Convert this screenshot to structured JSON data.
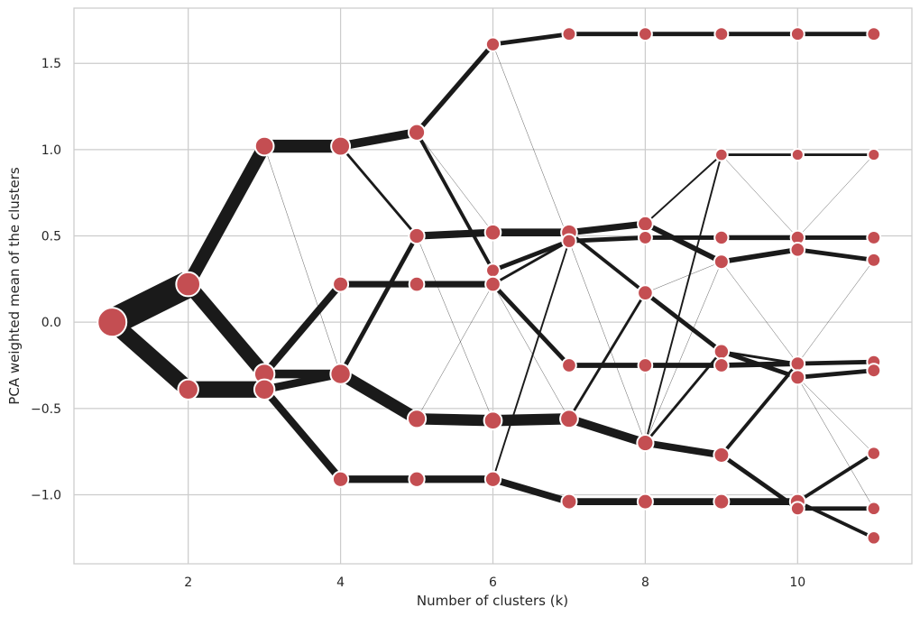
{
  "chart_data": {
    "type": "line",
    "xlabel": "Number of clusters (k)",
    "ylabel": "PCA weighted mean of the clusters",
    "xlim": [
      0.5,
      11.5
    ],
    "ylim": [
      -1.4,
      1.82
    ],
    "xticks": [
      2,
      4,
      6,
      8,
      10
    ],
    "yticks": [
      -1.0,
      -0.5,
      0.0,
      0.5,
      1.0,
      1.5
    ],
    "ytick_labels": [
      "−1.0",
      "−0.5",
      "0.0",
      "0.5",
      "1.0",
      "1.5"
    ],
    "grid": true,
    "colors": {
      "edge": "#1a1a1a",
      "node": "#c44e52",
      "node_stroke": "#ffffff",
      "grid": "#cccccc",
      "frame": "#cccccc"
    },
    "nodes": [
      {
        "k": 1,
        "y": 0.0,
        "size": 1.0
      },
      {
        "k": 2,
        "y": 0.22,
        "size": 0.62
      },
      {
        "k": 2,
        "y": -0.39,
        "size": 0.38
      },
      {
        "k": 3,
        "y": 1.02,
        "size": 0.3
      },
      {
        "k": 3,
        "y": -0.3,
        "size": 0.38
      },
      {
        "k": 3,
        "y": -0.39,
        "size": 0.38
      },
      {
        "k": 4,
        "y": 1.02,
        "size": 0.31
      },
      {
        "k": 4,
        "y": 0.22,
        "size": 0.16
      },
      {
        "k": 4,
        "y": -0.3,
        "size": 0.38
      },
      {
        "k": 4,
        "y": -0.91,
        "size": 0.17
      },
      {
        "k": 5,
        "y": 1.1,
        "size": 0.2
      },
      {
        "k": 5,
        "y": 0.5,
        "size": 0.17
      },
      {
        "k": 5,
        "y": 0.22,
        "size": 0.15
      },
      {
        "k": 5,
        "y": -0.56,
        "size": 0.28
      },
      {
        "k": 5,
        "y": -0.91,
        "size": 0.17
      },
      {
        "k": 6,
        "y": 1.61,
        "size": 0.11
      },
      {
        "k": 6,
        "y": 0.52,
        "size": 0.18
      },
      {
        "k": 6,
        "y": 0.3,
        "size": 0.1
      },
      {
        "k": 6,
        "y": 0.22,
        "size": 0.15
      },
      {
        "k": 6,
        "y": -0.57,
        "size": 0.26
      },
      {
        "k": 6,
        "y": -0.91,
        "size": 0.17
      },
      {
        "k": 7,
        "y": 1.67,
        "size": 0.1
      },
      {
        "k": 7,
        "y": 0.52,
        "size": 0.18
      },
      {
        "k": 7,
        "y": 0.47,
        "size": 0.11
      },
      {
        "k": 7,
        "y": -0.25,
        "size": 0.12
      },
      {
        "k": 7,
        "y": -0.56,
        "size": 0.26
      },
      {
        "k": 7,
        "y": -1.04,
        "size": 0.16
      },
      {
        "k": 8,
        "y": 1.67,
        "size": 0.1
      },
      {
        "k": 8,
        "y": 0.57,
        "size": 0.15
      },
      {
        "k": 8,
        "y": 0.49,
        "size": 0.1
      },
      {
        "k": 8,
        "y": 0.17,
        "size": 0.15
      },
      {
        "k": 8,
        "y": -0.25,
        "size": 0.12
      },
      {
        "k": 8,
        "y": -0.7,
        "size": 0.2
      },
      {
        "k": 8,
        "y": -1.04,
        "size": 0.16
      },
      {
        "k": 9,
        "y": 1.67,
        "size": 0.1
      },
      {
        "k": 9,
        "y": 0.97,
        "size": 0.07
      },
      {
        "k": 9,
        "y": 0.49,
        "size": 0.11
      },
      {
        "k": 9,
        "y": 0.35,
        "size": 0.13
      },
      {
        "k": 9,
        "y": -0.17,
        "size": 0.14
      },
      {
        "k": 9,
        "y": -0.25,
        "size": 0.12
      },
      {
        "k": 9,
        "y": -0.77,
        "size": 0.16
      },
      {
        "k": 9,
        "y": -1.04,
        "size": 0.16
      },
      {
        "k": 10,
        "y": 1.67,
        "size": 0.1
      },
      {
        "k": 10,
        "y": 0.97,
        "size": 0.06
      },
      {
        "k": 10,
        "y": 0.49,
        "size": 0.11
      },
      {
        "k": 10,
        "y": 0.42,
        "size": 0.12
      },
      {
        "k": 10,
        "y": -0.24,
        "size": 0.12
      },
      {
        "k": 10,
        "y": -0.32,
        "size": 0.13
      },
      {
        "k": 10,
        "y": -1.04,
        "size": 0.16
      },
      {
        "k": 10,
        "y": -1.08,
        "size": 0.1
      },
      {
        "k": 11,
        "y": 1.67,
        "size": 0.1
      },
      {
        "k": 11,
        "y": 0.97,
        "size": 0.06
      },
      {
        "k": 11,
        "y": 0.49,
        "size": 0.1
      },
      {
        "k": 11,
        "y": 0.36,
        "size": 0.1
      },
      {
        "k": 11,
        "y": -0.23,
        "size": 0.1
      },
      {
        "k": 11,
        "y": -0.28,
        "size": 0.1
      },
      {
        "k": 11,
        "y": -0.76,
        "size": 0.09
      },
      {
        "k": 11,
        "y": -1.08,
        "size": 0.09
      },
      {
        "k": 11,
        "y": -1.25,
        "size": 0.09
      }
    ],
    "edges": [
      {
        "from": [
          1,
          0.0
        ],
        "to": [
          2,
          0.22
        ],
        "w": 0.62
      },
      {
        "from": [
          1,
          0.0
        ],
        "to": [
          2,
          -0.39
        ],
        "w": 0.38
      },
      {
        "from": [
          2,
          0.22
        ],
        "to": [
          3,
          1.02
        ],
        "w": 0.3
      },
      {
        "from": [
          2,
          0.22
        ],
        "to": [
          3,
          -0.3
        ],
        "w": 0.32
      },
      {
        "from": [
          2,
          -0.39
        ],
        "to": [
          3,
          -0.39
        ],
        "w": 0.38
      },
      {
        "from": [
          3,
          1.02
        ],
        "to": [
          4,
          1.02
        ],
        "w": 0.3
      },
      {
        "from": [
          3,
          1.02
        ],
        "to": [
          4,
          -0.3
        ],
        "w": 0.002
      },
      {
        "from": [
          3,
          -0.3
        ],
        "to": [
          4,
          0.22
        ],
        "w": 0.16
      },
      {
        "from": [
          3,
          -0.3
        ],
        "to": [
          4,
          -0.3
        ],
        "w": 0.2
      },
      {
        "from": [
          3,
          -0.39
        ],
        "to": [
          4,
          -0.3
        ],
        "w": 0.18
      },
      {
        "from": [
          3,
          -0.39
        ],
        "to": [
          4,
          -0.91
        ],
        "w": 0.17
      },
      {
        "from": [
          4,
          1.02
        ],
        "to": [
          5,
          1.1
        ],
        "w": 0.2
      },
      {
        "from": [
          4,
          1.02
        ],
        "to": [
          5,
          0.5
        ],
        "w": 0.06
      },
      {
        "from": [
          4,
          1.02
        ],
        "to": [
          5,
          1.1
        ],
        "w": 0.002
      },
      {
        "from": [
          4,
          0.22
        ],
        "to": [
          5,
          0.22
        ],
        "w": 0.15
      },
      {
        "from": [
          4,
          -0.3
        ],
        "to": [
          5,
          0.5
        ],
        "w": 0.1
      },
      {
        "from": [
          4,
          -0.3
        ],
        "to": [
          5,
          -0.56
        ],
        "w": 0.28
      },
      {
        "from": [
          4,
          -0.91
        ],
        "to": [
          5,
          -0.91
        ],
        "w": 0.17
      },
      {
        "from": [
          5,
          1.1
        ],
        "to": [
          6,
          1.61
        ],
        "w": 0.11
      },
      {
        "from": [
          5,
          1.1
        ],
        "to": [
          6,
          0.3
        ],
        "w": 0.08
      },
      {
        "from": [
          5,
          1.1
        ],
        "to": [
          6,
          0.52
        ],
        "w": 0.004
      },
      {
        "from": [
          5,
          0.5
        ],
        "to": [
          6,
          0.52
        ],
        "w": 0.17
      },
      {
        "from": [
          5,
          0.5
        ],
        "to": [
          6,
          -0.57
        ],
        "w": 0.002
      },
      {
        "from": [
          5,
          0.22
        ],
        "to": [
          6,
          0.22
        ],
        "w": 0.15
      },
      {
        "from": [
          5,
          -0.56
        ],
        "to": [
          6,
          -0.57
        ],
        "w": 0.26
      },
      {
        "from": [
          5,
          -0.56
        ],
        "to": [
          6,
          0.22
        ],
        "w": 0.004
      },
      {
        "from": [
          5,
          -0.91
        ],
        "to": [
          6,
          -0.91
        ],
        "w": 0.17
      },
      {
        "from": [
          6,
          1.61
        ],
        "to": [
          7,
          1.67
        ],
        "w": 0.1
      },
      {
        "from": [
          6,
          1.61
        ],
        "to": [
          7,
          0.47
        ],
        "w": 0.004
      },
      {
        "from": [
          6,
          0.52
        ],
        "to": [
          7,
          0.52
        ],
        "w": 0.18
      },
      {
        "from": [
          6,
          0.3
        ],
        "to": [
          7,
          0.47
        ],
        "w": 0.1
      },
      {
        "from": [
          6,
          0.22
        ],
        "to": [
          7,
          0.47
        ],
        "w": 0.06
      },
      {
        "from": [
          6,
          0.22
        ],
        "to": [
          7,
          -0.25
        ],
        "w": 0.1
      },
      {
        "from": [
          6,
          0.22
        ],
        "to": [
          7,
          -0.56
        ],
        "w": 0.002
      },
      {
        "from": [
          6,
          -0.57
        ],
        "to": [
          7,
          -0.56
        ],
        "w": 0.26
      },
      {
        "from": [
          6,
          -0.91
        ],
        "to": [
          7,
          -1.04
        ],
        "w": 0.16
      },
      {
        "from": [
          6,
          -0.91
        ],
        "to": [
          7,
          0.47
        ],
        "w": 0.04
      },
      {
        "from": [
          7,
          1.67
        ],
        "to": [
          8,
          1.67
        ],
        "w": 0.1
      },
      {
        "from": [
          7,
          0.52
        ],
        "to": [
          8,
          0.57
        ],
        "w": 0.15
      },
      {
        "from": [
          7,
          0.47
        ],
        "to": [
          8,
          0.49
        ],
        "w": 0.1
      },
      {
        "from": [
          7,
          0.52
        ],
        "to": [
          8,
          0.17
        ],
        "w": 0.08
      },
      {
        "from": [
          7,
          0.47
        ],
        "to": [
          8,
          -0.7
        ],
        "w": 0.002
      },
      {
        "from": [
          7,
          -0.25
        ],
        "to": [
          8,
          -0.25
        ],
        "w": 0.12
      },
      {
        "from": [
          7,
          -0.56
        ],
        "to": [
          8,
          -0.7
        ],
        "w": 0.2
      },
      {
        "from": [
          7,
          -0.56
        ],
        "to": [
          8,
          0.17
        ],
        "w": 0.06
      },
      {
        "from": [
          7,
          -1.04
        ],
        "to": [
          8,
          -1.04
        ],
        "w": 0.16
      },
      {
        "from": [
          8,
          1.67
        ],
        "to": [
          9,
          1.67
        ],
        "w": 0.1
      },
      {
        "from": [
          8,
          0.57
        ],
        "to": [
          9,
          0.35
        ],
        "w": 0.12
      },
      {
        "from": [
          8,
          0.57
        ],
        "to": [
          9,
          0.97
        ],
        "w": 0.04
      },
      {
        "from": [
          8,
          0.49
        ],
        "to": [
          9,
          0.49
        ],
        "w": 0.1
      },
      {
        "from": [
          8,
          0.17
        ],
        "to": [
          9,
          -0.17
        ],
        "w": 0.1
      },
      {
        "from": [
          8,
          0.17
        ],
        "to": [
          9,
          0.35
        ],
        "w": 0.002
      },
      {
        "from": [
          8,
          -0.25
        ],
        "to": [
          9,
          -0.25
        ],
        "w": 0.12
      },
      {
        "from": [
          8,
          -0.7
        ],
        "to": [
          9,
          -0.77
        ],
        "w": 0.16
      },
      {
        "from": [
          8,
          -0.7
        ],
        "to": [
          9,
          0.97
        ],
        "w": 0.04
      },
      {
        "from": [
          8,
          -0.7
        ],
        "to": [
          9,
          -0.17
        ],
        "w": 0.06
      },
      {
        "from": [
          8,
          -0.7
        ],
        "to": [
          9,
          0.35
        ],
        "w": 0.002
      },
      {
        "from": [
          8,
          -1.04
        ],
        "to": [
          9,
          -1.04
        ],
        "w": 0.16
      },
      {
        "from": [
          9,
          1.67
        ],
        "to": [
          10,
          1.67
        ],
        "w": 0.1
      },
      {
        "from": [
          9,
          0.97
        ],
        "to": [
          10,
          0.97
        ],
        "w": 0.06
      },
      {
        "from": [
          9,
          0.97
        ],
        "to": [
          10,
          0.49
        ],
        "w": 0.004
      },
      {
        "from": [
          9,
          0.49
        ],
        "to": [
          10,
          0.49
        ],
        "w": 0.11
      },
      {
        "from": [
          9,
          0.35
        ],
        "to": [
          10,
          0.42
        ],
        "w": 0.12
      },
      {
        "from": [
          9,
          0.35
        ],
        "to": [
          10,
          -0.24
        ],
        "w": 0.002
      },
      {
        "from": [
          9,
          -0.17
        ],
        "to": [
          10,
          -0.24
        ],
        "w": 0.06
      },
      {
        "from": [
          9,
          -0.17
        ],
        "to": [
          10,
          -0.32
        ],
        "w": 0.1
      },
      {
        "from": [
          9,
          -0.25
        ],
        "to": [
          10,
          -0.24
        ],
        "w": 0.12
      },
      {
        "from": [
          9,
          -0.77
        ],
        "to": [
          10,
          -0.24
        ],
        "w": 0.08
      },
      {
        "from": [
          9,
          -0.77
        ],
        "to": [
          10,
          -1.08
        ],
        "w": 0.1
      },
      {
        "from": [
          9,
          -1.04
        ],
        "to": [
          10,
          -1.04
        ],
        "w": 0.16
      },
      {
        "from": [
          10,
          1.67
        ],
        "to": [
          11,
          1.67
        ],
        "w": 0.1
      },
      {
        "from": [
          10,
          0.97
        ],
        "to": [
          11,
          0.97
        ],
        "w": 0.06
      },
      {
        "from": [
          10,
          0.49
        ],
        "to": [
          11,
          0.49
        ],
        "w": 0.1
      },
      {
        "from": [
          10,
          0.49
        ],
        "to": [
          11,
          0.97
        ],
        "w": 0.002
      },
      {
        "from": [
          10,
          0.42
        ],
        "to": [
          11,
          0.36
        ],
        "w": 0.1
      },
      {
        "from": [
          10,
          -0.24
        ],
        "to": [
          11,
          -0.23
        ],
        "w": 0.1
      },
      {
        "from": [
          10,
          -0.24
        ],
        "to": [
          11,
          0.36
        ],
        "w": 0.002
      },
      {
        "from": [
          10,
          -0.32
        ],
        "to": [
          11,
          -0.28
        ],
        "w": 0.1
      },
      {
        "from": [
          10,
          -0.32
        ],
        "to": [
          11,
          -0.76
        ],
        "w": 0.004
      },
      {
        "from": [
          10,
          -0.32
        ],
        "to": [
          11,
          -1.08
        ],
        "w": 0.002
      },
      {
        "from": [
          10,
          -1.04
        ],
        "to": [
          11,
          -0.76
        ],
        "w": 0.08
      },
      {
        "from": [
          10,
          -1.04
        ],
        "to": [
          11,
          -1.25
        ],
        "w": 0.08
      },
      {
        "from": [
          10,
          -1.08
        ],
        "to": [
          11,
          -1.08
        ],
        "w": 0.1
      }
    ]
  }
}
